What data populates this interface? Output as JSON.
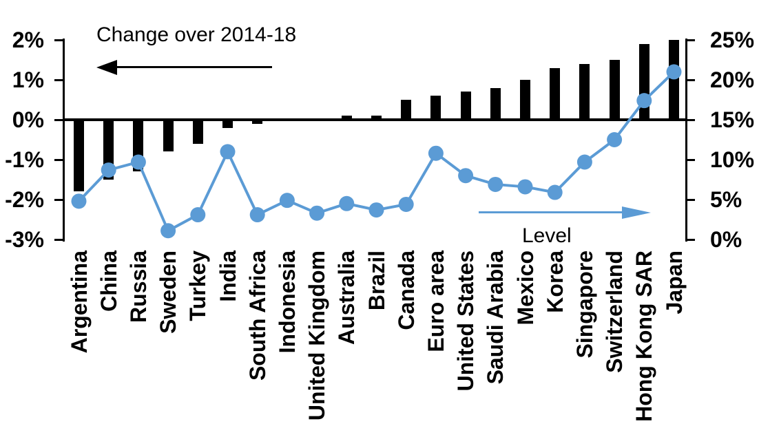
{
  "chart_data": {
    "type": "combo",
    "categories": [
      "Argentina",
      "China",
      "Russia",
      "Sweden",
      "Turkey",
      "India",
      "South Africa",
      "Indonesia",
      "United Kingdom",
      "Australia",
      "Brazil",
      "Canada",
      "Euro area",
      "United States",
      "Saudi Arabia",
      "Mexico",
      "Korea",
      "Singapore",
      "Switzerland",
      "Hong Kong SAR",
      "Japan"
    ],
    "series": [
      {
        "name": "Change over 2014-18",
        "type": "bar",
        "axis": "left",
        "color": "#000000",
        "values": [
          -1.8,
          -1.5,
          -1.3,
          -0.8,
          -0.6,
          -0.2,
          -0.1,
          0.0,
          0.0,
          0.1,
          0.1,
          0.5,
          0.6,
          0.7,
          0.8,
          1.0,
          1.3,
          1.4,
          1.5,
          1.9,
          2.0
        ]
      },
      {
        "name": "Level",
        "type": "line",
        "axis": "right",
        "color": "#5B9BD5",
        "values": [
          4.8,
          8.7,
          9.7,
          1.1,
          3.1,
          11.0,
          3.1,
          4.9,
          3.3,
          4.5,
          3.7,
          4.4,
          10.8,
          8.0,
          6.9,
          6.6,
          5.9,
          9.7,
          12.5,
          17.4,
          21.0
        ]
      }
    ],
    "left_axis": {
      "unit": "%",
      "min": -3,
      "max": 2,
      "tick_values": [
        2,
        1,
        0,
        -1,
        -2,
        -3
      ],
      "tick_labels": [
        "2%",
        "1%",
        "0%",
        "-1%",
        "-2%",
        "-3%"
      ]
    },
    "right_axis": {
      "unit": "%",
      "min": 0,
      "max": 25,
      "tick_values": [
        25,
        20,
        15,
        10,
        5,
        0
      ],
      "tick_labels": [
        "25%",
        "20%",
        "15%",
        "10%",
        "5%",
        "0%"
      ]
    },
    "annotations": [
      {
        "text": "Change over 2014-18",
        "arrow": "left",
        "color": "#000000"
      },
      {
        "text": "Level",
        "arrow": "right",
        "color": "#5B9BD5"
      }
    ],
    "layout_hints": {
      "grid": "off",
      "zero_line": "left axis 0% aligned with right axis 15%",
      "x_label_rotation": -90
    }
  }
}
